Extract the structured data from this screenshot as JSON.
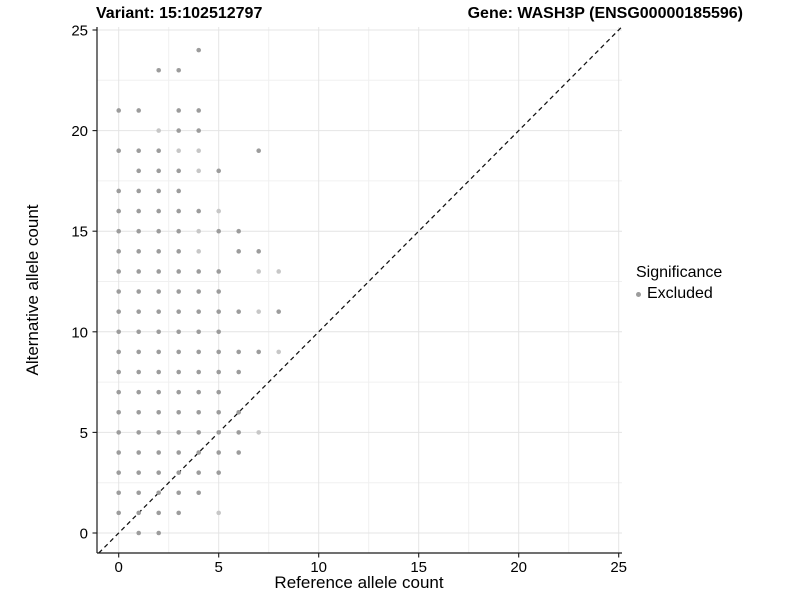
{
  "header": {
    "left_title": "Variant: 15:102512797",
    "right_title": "Gene: WASH3P (ENSG00000185596)"
  },
  "chart_data": {
    "type": "scatter",
    "title_left": "Variant: 15:102512797",
    "title_right": "Gene: WASH3P (ENSG00000185596)",
    "xlabel": "Reference allele count",
    "ylabel": "Alternative allele count",
    "xlim": [
      0,
      25
    ],
    "ylim": [
      0,
      25
    ],
    "xticks": [
      0,
      5,
      10,
      15,
      20,
      25
    ],
    "yticks": [
      0,
      5,
      10,
      15,
      20,
      25
    ],
    "grid": "major and minor gridlines, light gray on white",
    "identity_line": {
      "style": "dashed",
      "from": [
        0,
        0
      ],
      "to": [
        25,
        25
      ],
      "color": "#111111"
    },
    "legend": {
      "position": "right",
      "title": "Significance",
      "items": [
        {
          "label": "Excluded",
          "color": "#9c9c9c"
        }
      ]
    },
    "point_colors": {
      "m": "#9c9c9c",
      "l": "#c7c7c7"
    },
    "series": [
      {
        "name": "Excluded",
        "points": [
          [
            4,
            24
          ],
          [
            2,
            23
          ],
          [
            3,
            23
          ],
          [
            0,
            21
          ],
          [
            1,
            21
          ],
          [
            3,
            21
          ],
          [
            4,
            21
          ],
          [
            2,
            20,
            "l"
          ],
          [
            3,
            20
          ],
          [
            4,
            20
          ],
          [
            0,
            19
          ],
          [
            1,
            19
          ],
          [
            2,
            19
          ],
          [
            3,
            19,
            "l"
          ],
          [
            4,
            19,
            "l"
          ],
          [
            7,
            19
          ],
          [
            1,
            18
          ],
          [
            2,
            18
          ],
          [
            3,
            18
          ],
          [
            4,
            18,
            "l"
          ],
          [
            5,
            18
          ],
          [
            0,
            17
          ],
          [
            1,
            17
          ],
          [
            2,
            17
          ],
          [
            3,
            17
          ],
          [
            0,
            16
          ],
          [
            1,
            16
          ],
          [
            2,
            16
          ],
          [
            3,
            16
          ],
          [
            4,
            16
          ],
          [
            5,
            16,
            "l"
          ],
          [
            0,
            15
          ],
          [
            1,
            15
          ],
          [
            2,
            15
          ],
          [
            3,
            15
          ],
          [
            4,
            15,
            "l"
          ],
          [
            5,
            15
          ],
          [
            6,
            15
          ],
          [
            0,
            14
          ],
          [
            1,
            14
          ],
          [
            2,
            14
          ],
          [
            3,
            14
          ],
          [
            4,
            14,
            "l"
          ],
          [
            6,
            14
          ],
          [
            7,
            14
          ],
          [
            0,
            13
          ],
          [
            1,
            13
          ],
          [
            2,
            13
          ],
          [
            3,
            13
          ],
          [
            4,
            13
          ],
          [
            5,
            13
          ],
          [
            7,
            13,
            "l"
          ],
          [
            8,
            13,
            "l"
          ],
          [
            0,
            12
          ],
          [
            1,
            12
          ],
          [
            2,
            12
          ],
          [
            3,
            12
          ],
          [
            4,
            12
          ],
          [
            5,
            12
          ],
          [
            0,
            11
          ],
          [
            1,
            11
          ],
          [
            2,
            11
          ],
          [
            3,
            11
          ],
          [
            4,
            11
          ],
          [
            5,
            11
          ],
          [
            6,
            11
          ],
          [
            7,
            11,
            "l"
          ],
          [
            8,
            11
          ],
          [
            0,
            10
          ],
          [
            1,
            10
          ],
          [
            2,
            10
          ],
          [
            3,
            10
          ],
          [
            4,
            10
          ],
          [
            5,
            10
          ],
          [
            0,
            9
          ],
          [
            1,
            9
          ],
          [
            2,
            9
          ],
          [
            3,
            9
          ],
          [
            4,
            9
          ],
          [
            5,
            9
          ],
          [
            6,
            9
          ],
          [
            7,
            9
          ],
          [
            8,
            9,
            "l"
          ],
          [
            0,
            8
          ],
          [
            1,
            8
          ],
          [
            2,
            8
          ],
          [
            3,
            8
          ],
          [
            4,
            8
          ],
          [
            5,
            8
          ],
          [
            6,
            8
          ],
          [
            0,
            7
          ],
          [
            1,
            7
          ],
          [
            2,
            7
          ],
          [
            3,
            7
          ],
          [
            4,
            7
          ],
          [
            5,
            7
          ],
          [
            0,
            6
          ],
          [
            1,
            6
          ],
          [
            2,
            6
          ],
          [
            3,
            6
          ],
          [
            4,
            6
          ],
          [
            5,
            6
          ],
          [
            6,
            6
          ],
          [
            0,
            5
          ],
          [
            1,
            5
          ],
          [
            2,
            5
          ],
          [
            3,
            5
          ],
          [
            4,
            5
          ],
          [
            5,
            5
          ],
          [
            6,
            5
          ],
          [
            7,
            5,
            "l"
          ],
          [
            0,
            4
          ],
          [
            1,
            4
          ],
          [
            2,
            4
          ],
          [
            3,
            4
          ],
          [
            4,
            4
          ],
          [
            5,
            4
          ],
          [
            6,
            4
          ],
          [
            0,
            3
          ],
          [
            1,
            3
          ],
          [
            2,
            3
          ],
          [
            3,
            3
          ],
          [
            4,
            3
          ],
          [
            5,
            3
          ],
          [
            0,
            2
          ],
          [
            1,
            2
          ],
          [
            2,
            2
          ],
          [
            3,
            2
          ],
          [
            4,
            2
          ],
          [
            0,
            1
          ],
          [
            1,
            1
          ],
          [
            2,
            1
          ],
          [
            3,
            1
          ],
          [
            5,
            1,
            "l"
          ],
          [
            1,
            0
          ],
          [
            2,
            0
          ]
        ]
      }
    ],
    "style_colors": {
      "grid_major": "#e4e4e4",
      "grid_minor": "#f0f0f0",
      "axis_line": "#1a1a1a",
      "text": "#000000"
    }
  }
}
